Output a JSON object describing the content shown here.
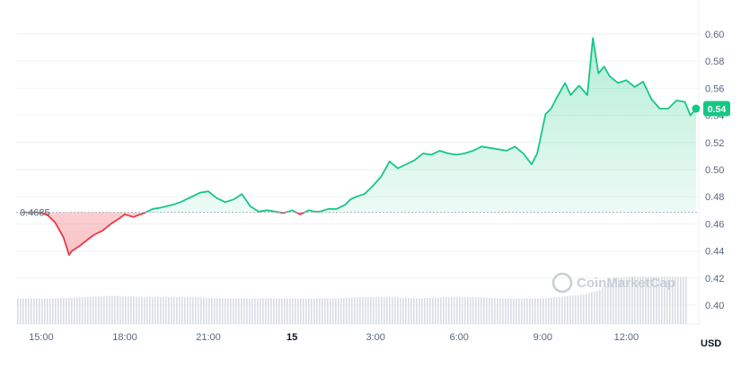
{
  "chart_data": {
    "type": "area",
    "x_ticks": [
      "15:00",
      "18:00",
      "21:00",
      "15",
      "3:00",
      "6:00",
      "9:00",
      "12:00"
    ],
    "x_ticks_bold": [
      "15"
    ],
    "y_ticks": [
      "0.60",
      "0.58",
      "0.56",
      "0.54",
      "0.52",
      "0.50",
      "0.48",
      "0.46",
      "0.44",
      "0.42",
      "0.40"
    ],
    "ylim": [
      0.4,
      0.6
    ],
    "xlim": [
      14.1,
      38.6
    ],
    "unit_label": "USD",
    "reference_value": "0.4685",
    "reference": 0.4685,
    "current_badge": "0.54",
    "current": 0.545,
    "up_color": "#16c784",
    "down_color": "#ea3943",
    "watermark": "CoinMarketCap",
    "price": {
      "x": [
        14.3,
        14.9,
        15.2,
        15.5,
        15.8,
        16.0,
        16.1,
        16.4,
        16.7,
        16.9,
        17.2,
        17.5,
        17.8,
        18.0,
        18.3,
        18.7,
        19.0,
        19.3,
        19.7,
        20.0,
        20.3,
        20.7,
        21.0,
        21.3,
        21.6,
        21.9,
        22.2,
        22.5,
        22.8,
        23.1,
        23.4,
        23.7,
        24.0,
        24.3,
        24.6,
        24.8,
        25.0,
        25.3,
        25.6,
        25.9,
        26.1,
        26.3,
        26.6,
        26.9,
        27.2,
        27.5,
        27.8,
        28.1,
        28.4,
        28.7,
        29.0,
        29.3,
        29.6,
        29.9,
        30.2,
        30.5,
        30.8,
        31.1,
        31.4,
        31.7,
        32.0,
        32.3,
        32.6,
        32.8,
        33.1,
        33.3,
        33.5,
        33.8,
        34.0,
        34.3,
        34.6,
        34.8,
        35.0,
        35.2,
        35.4,
        35.7,
        36.0,
        36.3,
        36.6,
        36.9,
        37.2,
        37.5,
        37.8,
        38.1,
        38.3,
        38.5
      ],
      "y": [
        0.4685,
        0.4685,
        0.467,
        0.461,
        0.45,
        0.437,
        0.44,
        0.444,
        0.449,
        0.452,
        0.455,
        0.46,
        0.464,
        0.467,
        0.465,
        0.468,
        0.471,
        0.472,
        0.474,
        0.476,
        0.479,
        0.483,
        0.484,
        0.479,
        0.476,
        0.478,
        0.482,
        0.473,
        0.469,
        0.47,
        0.469,
        0.468,
        0.47,
        0.467,
        0.47,
        0.469,
        0.469,
        0.471,
        0.471,
        0.474,
        0.478,
        0.48,
        0.482,
        0.488,
        0.495,
        0.506,
        0.501,
        0.504,
        0.507,
        0.512,
        0.511,
        0.514,
        0.512,
        0.511,
        0.512,
        0.514,
        0.517,
        0.516,
        0.515,
        0.514,
        0.517,
        0.512,
        0.504,
        0.512,
        0.541,
        0.545,
        0.553,
        0.564,
        0.555,
        0.562,
        0.555,
        0.597,
        0.571,
        0.576,
        0.569,
        0.564,
        0.566,
        0.561,
        0.565,
        0.552,
        0.545,
        0.545,
        0.551,
        0.55,
        0.54,
        0.545
      ]
    },
    "volume": {
      "x": [
        14.3,
        15.5,
        16.5,
        17.5,
        18.5,
        19.5,
        20.5,
        21.5,
        22.5,
        23.5,
        24.5,
        25.5,
        26.5,
        27.5,
        28.5,
        29.5,
        30.5,
        31.5,
        32.5,
        33.0,
        33.5,
        34.0,
        34.5,
        35.0,
        35.5,
        36.0,
        37.0,
        38.0,
        38.5
      ],
      "y": [
        0.405,
        0.405,
        0.406,
        0.407,
        0.406,
        0.406,
        0.406,
        0.405,
        0.405,
        0.405,
        0.405,
        0.405,
        0.406,
        0.406,
        0.405,
        0.406,
        0.406,
        0.405,
        0.405,
        0.405,
        0.406,
        0.407,
        0.408,
        0.411,
        0.42,
        0.421,
        0.421,
        0.421,
        0.421
      ]
    }
  }
}
